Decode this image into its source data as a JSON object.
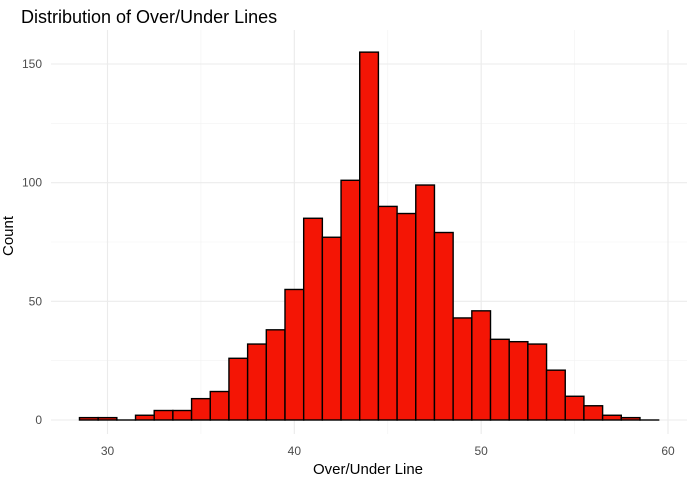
{
  "chart_data": {
    "type": "bar",
    "title": "Distribution of Over/Under Lines",
    "xlabel": "Over/Under Line",
    "ylabel": "Count",
    "xlim": [
      28.5,
      60.0
    ],
    "ylim": [
      0,
      160
    ],
    "x_ticks": [
      30,
      40,
      50,
      60
    ],
    "y_ticks": [
      0,
      50,
      100,
      150
    ],
    "grid": true,
    "legend": "none",
    "bin_width": 1.0,
    "bin_start": 28.5,
    "bar_color": "#F41505",
    "bar_outline": "#000000",
    "categories": [
      "29",
      "30",
      "31",
      "32",
      "33",
      "34",
      "35",
      "36",
      "37",
      "38",
      "39",
      "40",
      "41",
      "42",
      "43",
      "44",
      "45",
      "46",
      "47",
      "48",
      "49",
      "50",
      "51",
      "52",
      "53",
      "54",
      "55",
      "56",
      "57",
      "58",
      "59"
    ],
    "values": [
      1,
      1,
      0,
      2,
      4,
      4,
      9,
      12,
      26,
      32,
      38,
      55,
      85,
      77,
      101,
      155,
      90,
      87,
      99,
      79,
      43,
      46,
      34,
      33,
      32,
      21,
      10,
      6,
      2,
      1,
      0
    ]
  }
}
